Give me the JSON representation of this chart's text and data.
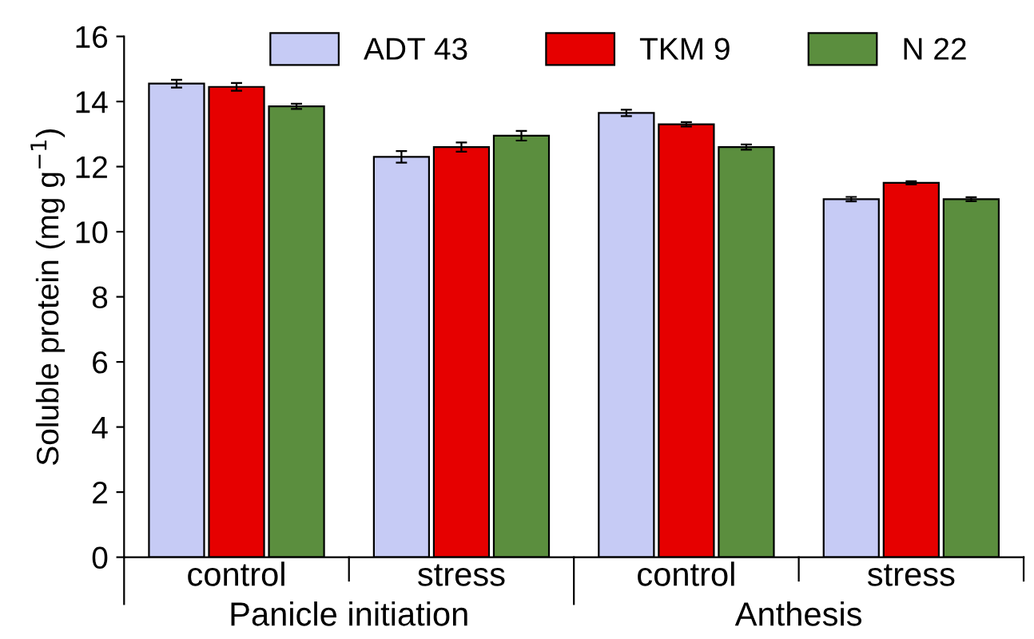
{
  "chart_data": {
    "type": "bar",
    "ylabel": "Soluble protein (mg g$^{−1}$)",
    "categories": [
      "control",
      "stress",
      "control",
      "stress"
    ],
    "series": [
      {
        "name": "ADT 43",
        "color": "#c6cbf5",
        "values": [
          14.55,
          12.3,
          13.65,
          11.0
        ],
        "errors": [
          0.12,
          0.18,
          0.1,
          0.07
        ]
      },
      {
        "name": "TKM 9",
        "color": "#e60000",
        "values": [
          14.45,
          12.6,
          13.3,
          11.5
        ],
        "errors": [
          0.12,
          0.14,
          0.07,
          0.05
        ]
      },
      {
        "name": "N 22",
        "color": "#5b8e3e",
        "values": [
          13.85,
          12.95,
          12.6,
          11.0
        ],
        "errors": [
          0.08,
          0.15,
          0.08,
          0.06
        ]
      }
    ],
    "annotations": [
      "Panicle initiation",
      "Anthesis"
    ],
    "ylim": [
      0,
      16
    ],
    "yticks": [
      0,
      2,
      4,
      6,
      8,
      10,
      12,
      14,
      16
    ],
    "legend": "top",
    "grid": false
  }
}
